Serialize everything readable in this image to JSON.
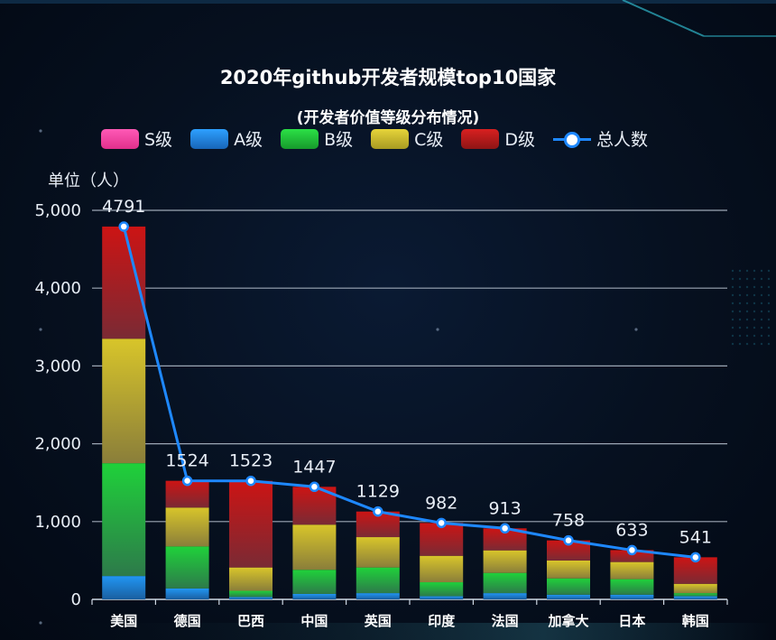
{
  "chart_data": {
    "type": "bar",
    "title": "2020年github开发者规模top10国家",
    "subtitle": "(开发者价值等级分布情况)",
    "ylabel": "单位（人）",
    "ylim": [
      0,
      5000
    ],
    "yticks": [
      "0",
      "1,000",
      "2,000",
      "3,000",
      "4,000",
      "5,000"
    ],
    "categories": [
      "美国",
      "德国",
      "巴西",
      "中国",
      "英国",
      "印度",
      "法国",
      "加拿大",
      "日本",
      "韩国"
    ],
    "stacked": true,
    "series": [
      {
        "name": "S级",
        "type": "bar",
        "color": "#ff3fa4",
        "values": [
          0,
          0,
          0,
          0,
          0,
          0,
          0,
          0,
          0,
          0
        ]
      },
      {
        "name": "A级",
        "type": "bar",
        "color": "#1f8ef1",
        "values": [
          300,
          140,
          30,
          70,
          80,
          40,
          80,
          60,
          60,
          40
        ]
      },
      {
        "name": "B级",
        "type": "bar",
        "color": "#21d13a",
        "values": [
          1450,
          540,
          80,
          310,
          330,
          180,
          260,
          210,
          200,
          40
        ]
      },
      {
        "name": "C级",
        "type": "bar",
        "color": "#d9c72b",
        "values": [
          1600,
          500,
          300,
          580,
          390,
          340,
          290,
          230,
          220,
          120
        ]
      },
      {
        "name": "D级",
        "type": "bar",
        "color": "#d11a1a",
        "values": [
          1441,
          344,
          1113,
          487,
          329,
          422,
          283,
          258,
          153,
          341
        ]
      },
      {
        "name": "总人数",
        "type": "line",
        "color": "#1e88ff",
        "values": [
          4791,
          1524,
          1523,
          1447,
          1129,
          982,
          913,
          758,
          633,
          541
        ]
      }
    ],
    "legend_position": "top",
    "grid": true
  }
}
